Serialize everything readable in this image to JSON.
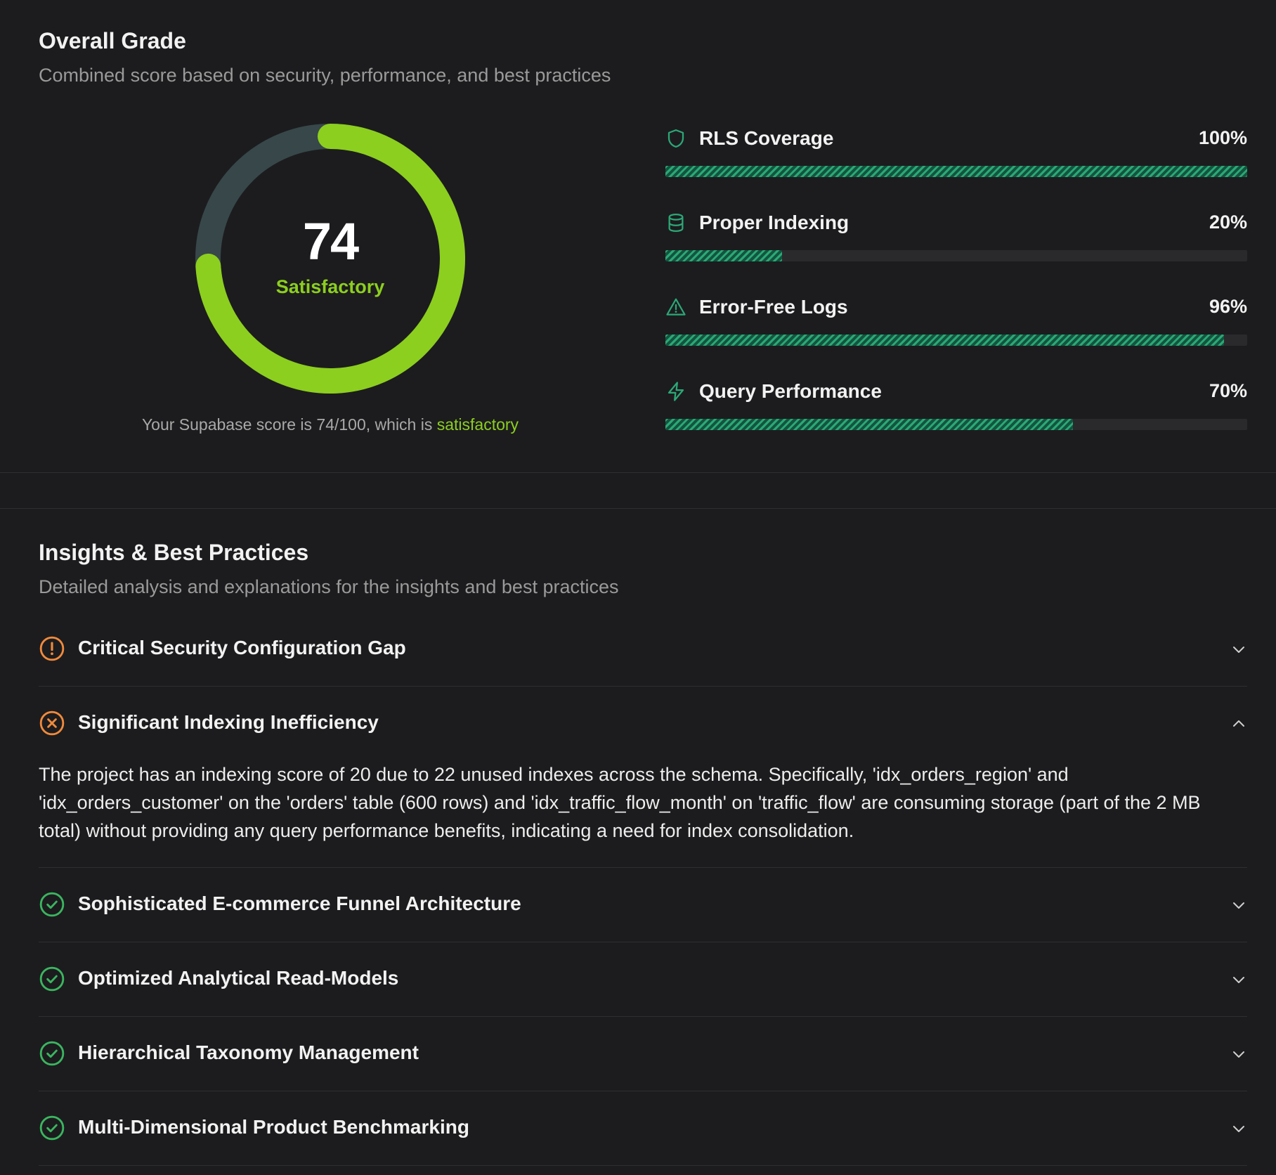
{
  "overall": {
    "title": "Overall Grade",
    "subtitle": "Combined score based on security, performance, and best practices",
    "score": "74",
    "score_value": 74,
    "score_max": 100,
    "rating": "Satisfactory",
    "caption_prefix": "Your Supabase score is 74/100, which is ",
    "caption_rating": "satisfactory",
    "colors": {
      "ring": "#8ccf1e",
      "ring_track": "#37474a",
      "bar": "#2ca877"
    }
  },
  "metrics": [
    {
      "icon": "shield-icon",
      "label": "RLS Coverage",
      "percent_label": "100%",
      "value": 100
    },
    {
      "icon": "database-icon",
      "label": "Proper Indexing",
      "percent_label": "20%",
      "value": 20
    },
    {
      "icon": "warning-triangle-icon",
      "label": "Error-Free Logs",
      "percent_label": "96%",
      "value": 96
    },
    {
      "icon": "lightning-icon",
      "label": "Query Performance",
      "percent_label": "70%",
      "value": 70
    }
  ],
  "insights": {
    "title": "Insights & Best Practices",
    "subtitle": "Detailed analysis and explanations for the insights and best practices",
    "items": [
      {
        "status": "warning",
        "icon": "alert-circle-icon",
        "title": "Critical Security Configuration Gap",
        "expanded": false
      },
      {
        "status": "error",
        "icon": "x-circle-icon",
        "title": "Significant Indexing Inefficiency",
        "expanded": true,
        "body": "The project has an indexing score of 20 due to 22 unused indexes across the schema. Specifically, 'idx_orders_region' and 'idx_orders_customer' on the 'orders' table (600 rows) and 'idx_traffic_flow_month' on 'traffic_flow' are consuming storage (part of the 2 MB total) without providing any query performance benefits, indicating a need for index consolidation."
      },
      {
        "status": "success",
        "icon": "check-circle-icon",
        "title": "Sophisticated E-commerce Funnel Architecture",
        "expanded": false
      },
      {
        "status": "success",
        "icon": "check-circle-icon",
        "title": "Optimized Analytical Read-Models",
        "expanded": false
      },
      {
        "status": "success",
        "icon": "check-circle-icon",
        "title": "Hierarchical Taxonomy Management",
        "expanded": false
      },
      {
        "status": "success",
        "icon": "check-circle-icon",
        "title": "Multi-Dimensional Product Benchmarking",
        "expanded": false
      }
    ],
    "status_colors": {
      "warning": "#f08a3c",
      "error": "#f08a3c",
      "success": "#3bb560"
    }
  }
}
